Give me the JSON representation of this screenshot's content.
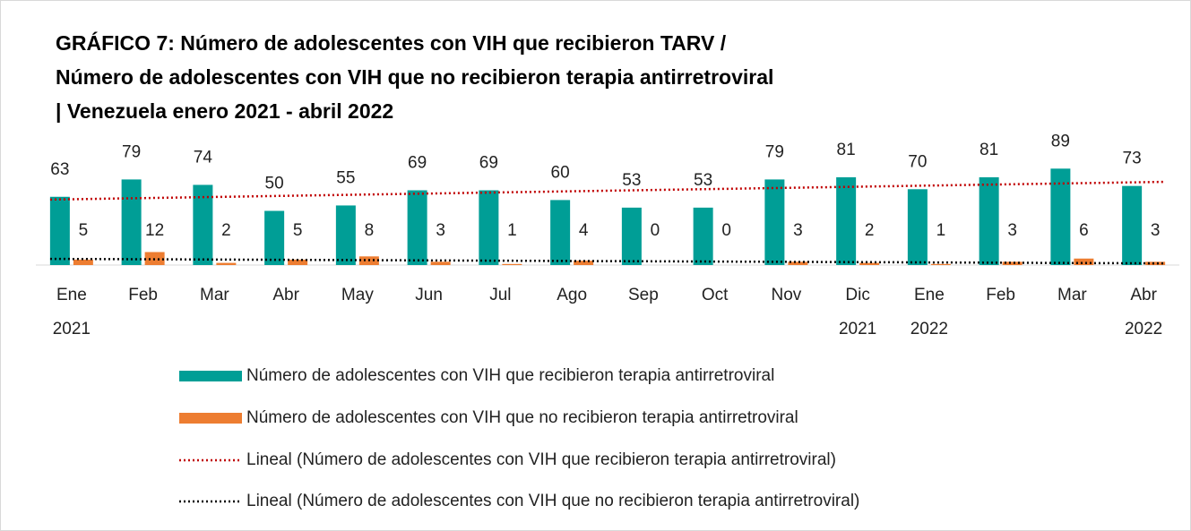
{
  "chart_data": {
    "type": "bar",
    "title": [
      "GRÁFICO 7: Número de adolescentes con VIH que recibieron TARV /",
      "Número de adolescentes con VIH que no recibieron terapia antirretroviral",
      "| Venezuela enero 2021 - abril 2022"
    ],
    "categories": [
      [
        "Ene",
        "2021"
      ],
      [
        "Feb"
      ],
      [
        "Mar"
      ],
      [
        "Abr"
      ],
      [
        "May"
      ],
      [
        "Jun"
      ],
      [
        "Jul"
      ],
      [
        "Ago"
      ],
      [
        "Sep"
      ],
      [
        "Oct"
      ],
      [
        "Nov"
      ],
      [
        "Dic",
        "2021"
      ],
      [
        "Ene",
        "2022"
      ],
      [
        "Feb"
      ],
      [
        "Mar"
      ],
      [
        "Abr",
        "2022"
      ]
    ],
    "series": [
      {
        "name": "Número de adolescentes con VIH que recibieron terapia antirretroviral",
        "color": "#009e96",
        "values": [
          63,
          79,
          74,
          50,
          55,
          69,
          69,
          60,
          53,
          53,
          79,
          81,
          70,
          81,
          89,
          73
        ],
        "trendline": {
          "name": "Lineal (Número de adolescentes con VIH que recibieron terapia antirretroviral)",
          "color": "#c00000"
        }
      },
      {
        "name": "Número de adolescentes con VIH que no recibieron terapia antirretroviral",
        "color": "#ed7d31",
        "values": [
          5,
          12,
          2,
          5,
          8,
          3,
          1,
          4,
          0,
          0,
          3,
          2,
          1,
          3,
          6,
          3
        ],
        "trendline": {
          "name": "Lineal (Número de adolescentes con VIH que no recibieron terapia antirretroviral)",
          "color": "#000000"
        }
      }
    ],
    "ylim": [
      0,
      100
    ]
  }
}
